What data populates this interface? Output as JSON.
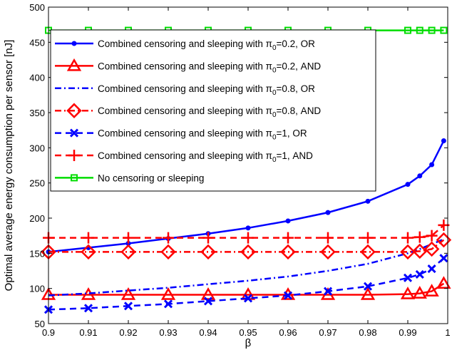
{
  "chart_data": {
    "type": "line",
    "xlabel": "β",
    "ylabel": "Optimal average energy consumption per sensor [nJ]",
    "xlim": [
      0.9,
      1.0
    ],
    "ylim": [
      50,
      500
    ],
    "xticks": [
      "0.9",
      "0.91",
      "0.92",
      "0.93",
      "0.94",
      "0.95",
      "0.96",
      "0.97",
      "0.98",
      "0.99",
      "1"
    ],
    "yticks": [
      "50",
      "100",
      "150",
      "200",
      "250",
      "300",
      "350",
      "400",
      "450",
      "500"
    ],
    "x": [
      0.9,
      0.91,
      0.92,
      0.93,
      0.94,
      0.95,
      0.96,
      0.97,
      0.98,
      0.99,
      0.993,
      0.996,
      0.999
    ],
    "grid": false,
    "legend_position": "top-left",
    "series": [
      {
        "name": "Combined censoring and sleeping with π0=0.2, OR",
        "label_parts": [
          "Combined censoring and sleeping with π",
          "0",
          "=0.2, OR"
        ],
        "color": "#0000ff",
        "dash": "solid",
        "marker": "dot",
        "values": [
          152,
          158,
          164,
          171,
          178,
          186,
          196,
          208,
          224,
          248,
          260,
          276,
          310
        ]
      },
      {
        "name": "Combined censoring and sleeping with π0=0.2, AND",
        "label_parts": [
          "Combined censoring and sleeping with π",
          "0",
          "=0.2, AND"
        ],
        "color": "#ff0000",
        "dash": "solid",
        "marker": "triangle",
        "values": [
          91,
          91,
          91,
          91,
          91,
          91,
          91,
          91,
          91,
          92,
          93,
          96,
          107
        ]
      },
      {
        "name": "Combined censoring and sleeping with π0=0.8, OR",
        "label_parts": [
          "Combined censoring and sleeping with π",
          "0",
          "=0.8, OR"
        ],
        "color": "#0000ff",
        "dash": "dashdot",
        "marker": "none",
        "values": [
          90,
          93,
          97,
          101,
          106,
          111,
          117,
          125,
          135,
          150,
          156,
          163,
          170
        ]
      },
      {
        "name": "Combined censoring and sleeping with π0=0.8, AND",
        "label_parts": [
          "Combined censoring and sleeping with π",
          "0",
          "=0.8, AND"
        ],
        "color": "#ff0000",
        "dash": "dashdot",
        "marker": "diamond",
        "values": [
          152,
          152,
          152,
          152,
          152,
          152,
          152,
          152,
          152,
          152,
          153,
          156,
          169
        ]
      },
      {
        "name": "Combined censoring and sleeping with π0=1, OR",
        "label_parts": [
          "Combined censoring and sleeping with π",
          "0",
          "=1, OR"
        ],
        "color": "#0000ff",
        "dash": "dashed",
        "marker": "x",
        "values": [
          70,
          72,
          75,
          78,
          82,
          86,
          90,
          96,
          103,
          115,
          120,
          128,
          143
        ]
      },
      {
        "name": "Combined censoring and sleeping with π0=1, AND",
        "label_parts": [
          "Combined censoring and sleeping with π",
          "0",
          "=1, AND"
        ],
        "color": "#ff0000",
        "dash": "dashed",
        "marker": "plus",
        "values": [
          172,
          172,
          172,
          172,
          172,
          172,
          172,
          172,
          172,
          172,
          173,
          175,
          190
        ]
      },
      {
        "name": "No censoring or sleeping",
        "label_parts": [
          "No censoring or sleeping",
          "",
          ""
        ],
        "color": "#00dd00",
        "dash": "solid",
        "marker": "square",
        "values": [
          467,
          467,
          467,
          467,
          467,
          467,
          467,
          467,
          467,
          467,
          467,
          467,
          467
        ]
      }
    ]
  }
}
